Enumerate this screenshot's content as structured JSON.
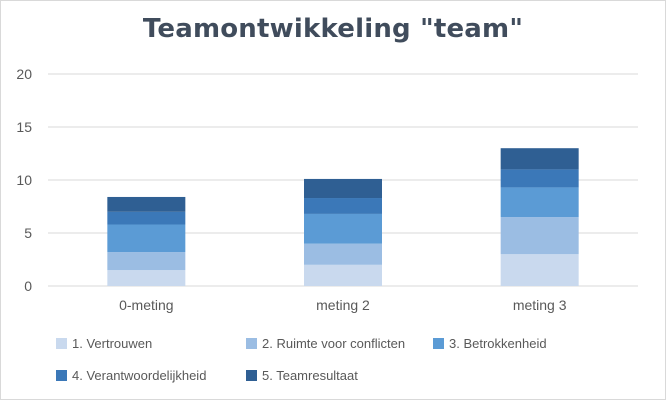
{
  "chart_data": {
    "type": "bar",
    "stacked": true,
    "title": "Teamontwikkeling \"team\"",
    "xlabel": "",
    "ylabel": "",
    "ylim": [
      0,
      20
    ],
    "yticks": [
      0,
      5,
      10,
      15,
      20
    ],
    "grid": true,
    "legend": "bottom",
    "categories": [
      "0-meting",
      "meting 2",
      "meting 3"
    ],
    "series": [
      {
        "name": "1. Vertrouwen",
        "values": [
          1.5,
          2.0,
          3.0
        ],
        "color": "#c9d9ee"
      },
      {
        "name": "2. Ruimte voor conflicten",
        "values": [
          1.7,
          2.0,
          3.5
        ],
        "color": "#9bbde3"
      },
      {
        "name": "3. Betrokkenheid",
        "values": [
          2.6,
          2.8,
          2.8
        ],
        "color": "#5b9bd5"
      },
      {
        "name": "4. Verantwoordelijkheid",
        "values": [
          1.2,
          1.5,
          1.7
        ],
        "color": "#3b78b8"
      },
      {
        "name": "5. Teamresultaat",
        "values": [
          1.4,
          1.8,
          2.0
        ],
        "color": "#2f5f93"
      }
    ]
  }
}
